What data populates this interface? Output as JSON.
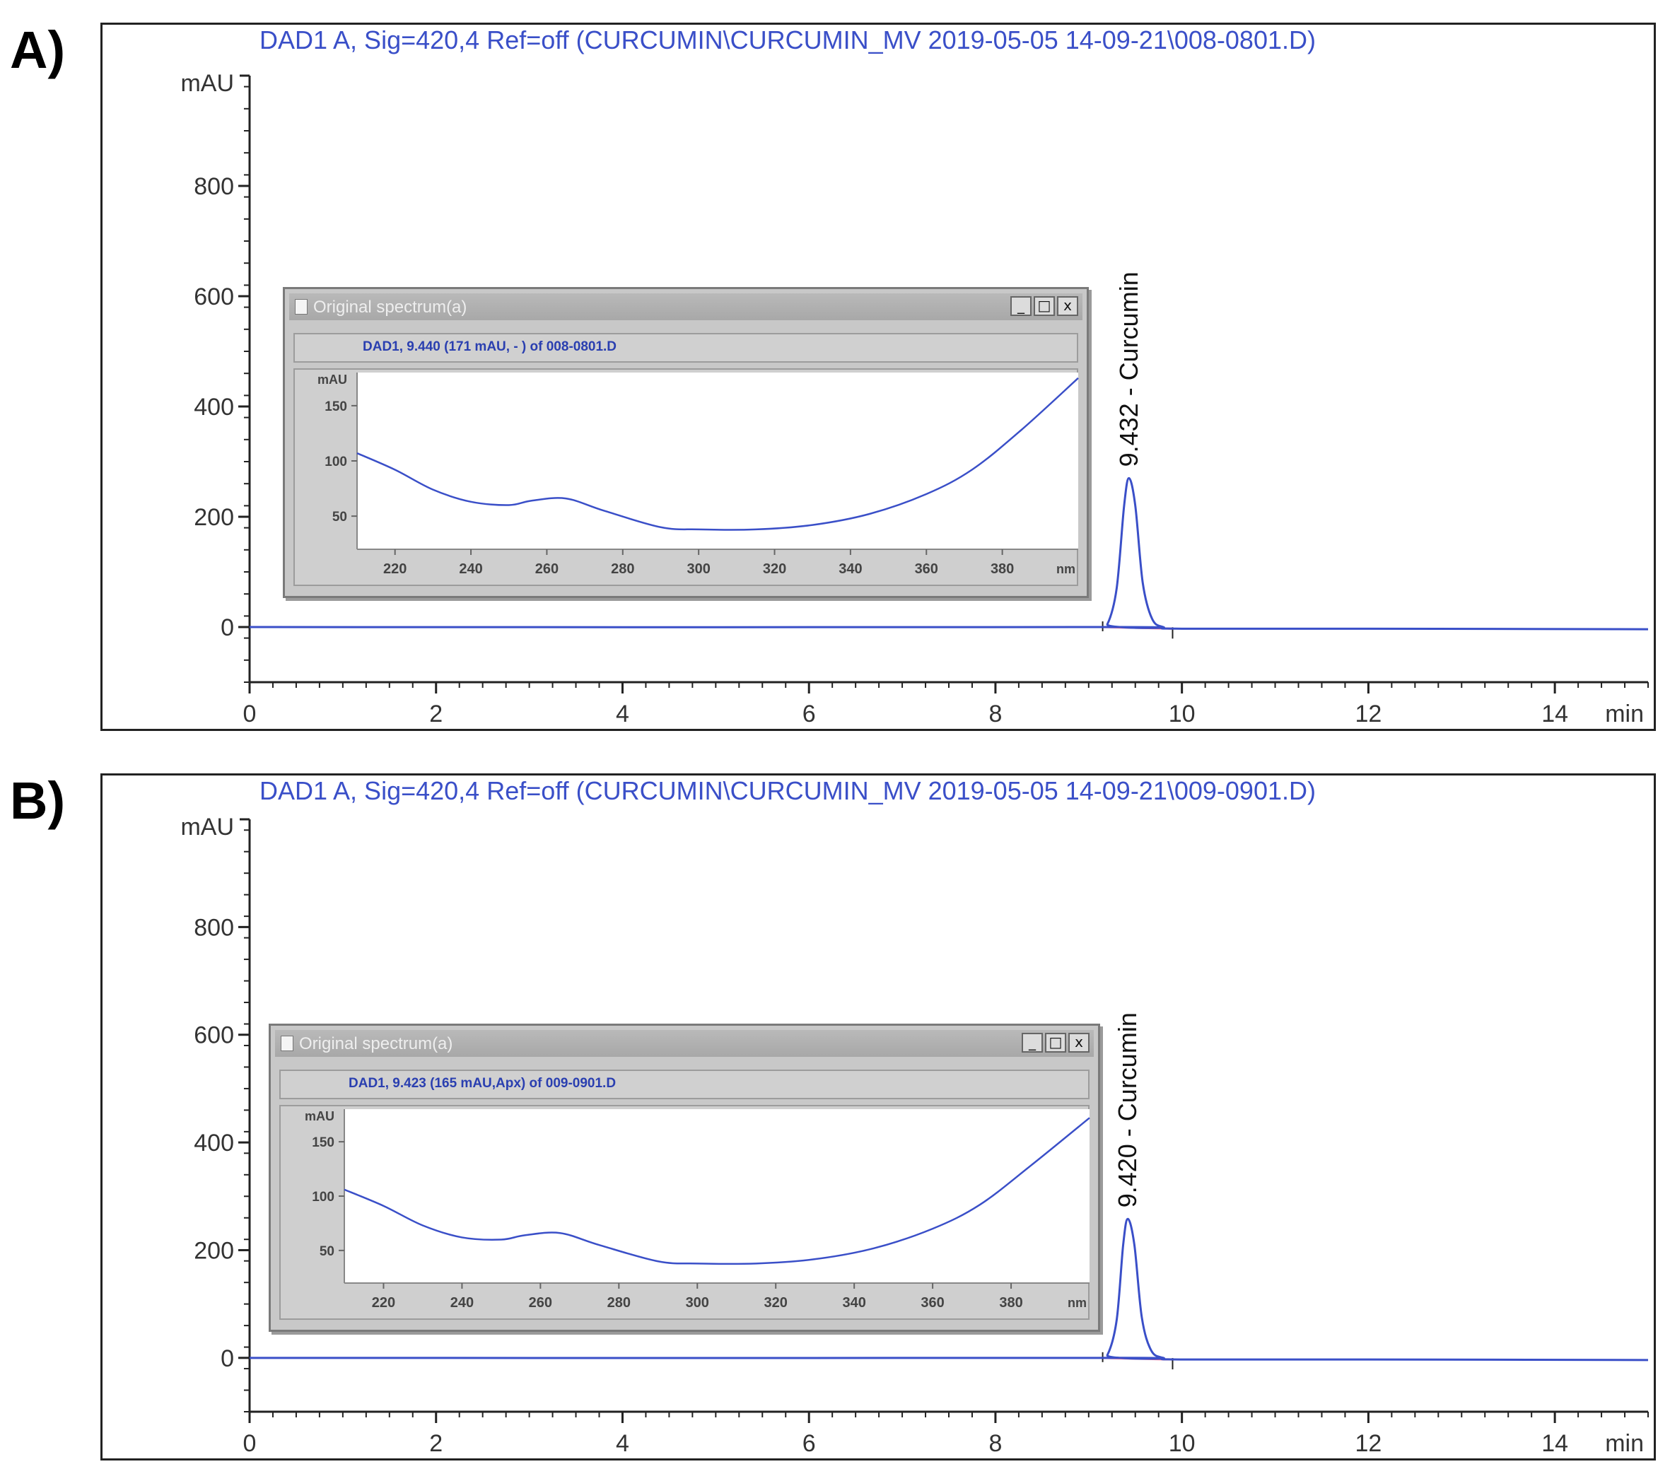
{
  "panels": [
    {
      "letter": "A)",
      "header": "DAD1 A, Sig=420,4 Ref=off (CURCUMIN\\CURCUMIN_MV 2019-05-05 14-09-21\\008-0801.D)",
      "y_unit": "mAU",
      "x_unit": "min",
      "peak_label": "9.432 -  Curcumin",
      "inset": {
        "title": "Original spectrum(a)",
        "subtitle": "DAD1, 9.440 (171 mAU, - ) of 008-0801.D",
        "y_unit": "mAU",
        "x_unit": "nm",
        "min_btn": "_",
        "max_btn": "□",
        "close_btn": "x"
      }
    },
    {
      "letter": "B)",
      "header": "DAD1 A, Sig=420,4 Ref=off (CURCUMIN\\CURCUMIN_MV 2019-05-05 14-09-21\\009-0901.D)",
      "y_unit": "mAU",
      "x_unit": "min",
      "peak_label": "9.420 -  Curcumin",
      "inset": {
        "title": "Original spectrum(a)",
        "subtitle": "DAD1, 9.423 (165 mAU,Apx) of 009-0901.D",
        "y_unit": "mAU",
        "x_unit": "nm",
        "min_btn": "_",
        "max_btn": "□",
        "close_btn": "x"
      }
    }
  ],
  "chart_data": [
    {
      "type": "line",
      "title": "DAD1 A, Sig=420,4 Ref=off (CURCUMIN\\CURCUMIN_MV 2019-05-05 14-09-21\\008-0801.D)",
      "xlabel": "min",
      "ylabel": "mAU",
      "xlim": [
        0,
        15
      ],
      "ylim": [
        -100,
        1000
      ],
      "x_ticks": [
        0,
        2,
        4,
        6,
        8,
        10,
        12,
        14
      ],
      "y_ticks": [
        0,
        200,
        400,
        600,
        800
      ],
      "grid": false,
      "series": [
        {
          "x": [
            0,
            9.1,
            9.2,
            9.3,
            9.38,
            9.432,
            9.5,
            9.58,
            9.68,
            9.8,
            10,
            12,
            15
          ],
          "y": [
            0,
            0,
            5,
            70,
            220,
            270,
            220,
            80,
            15,
            0,
            -3,
            -3,
            -4
          ]
        }
      ],
      "annotations": [
        {
          "x": 9.432,
          "y": 270,
          "text": "9.432 -  Curcumin"
        }
      ]
    },
    {
      "type": "line",
      "title": "Original spectrum(a)",
      "subtitle": "DAD1, 9.440 (171 mAU, - ) of 008-0801.D",
      "xlabel": "nm",
      "ylabel": "mAU",
      "xlim": [
        210,
        400
      ],
      "ylim": [
        20,
        180
      ],
      "x_ticks": [
        220,
        240,
        260,
        280,
        300,
        320,
        340,
        360,
        380
      ],
      "y_ticks": [
        50,
        100,
        150
      ],
      "series": [
        {
          "x": [
            210,
            220,
            230,
            240,
            250,
            256,
            265,
            275,
            290,
            300,
            315,
            330,
            345,
            360,
            372,
            385,
            400
          ],
          "y": [
            107,
            92,
            74,
            63,
            60,
            64,
            66,
            55,
            40,
            38,
            38,
            42,
            52,
            70,
            92,
            128,
            175
          ]
        }
      ]
    },
    {
      "type": "line",
      "title": "DAD1 A, Sig=420,4 Ref=off (CURCUMIN\\CURCUMIN_MV 2019-05-05 14-09-21\\009-0901.D)",
      "xlabel": "min",
      "ylabel": "mAU",
      "xlim": [
        0,
        15
      ],
      "ylim": [
        -100,
        1000
      ],
      "x_ticks": [
        0,
        2,
        4,
        6,
        8,
        10,
        12,
        14
      ],
      "y_ticks": [
        0,
        200,
        400,
        600,
        800
      ],
      "grid": false,
      "series": [
        {
          "x": [
            0,
            9.1,
            9.2,
            9.3,
            9.37,
            9.42,
            9.49,
            9.57,
            9.67,
            9.8,
            10,
            12,
            15
          ],
          "y": [
            0,
            0,
            5,
            70,
            210,
            258,
            210,
            75,
            14,
            0,
            -3,
            -3,
            -4
          ]
        }
      ],
      "annotations": [
        {
          "x": 9.42,
          "y": 258,
          "text": "9.420 -  Curcumin"
        }
      ]
    },
    {
      "type": "line",
      "title": "Original spectrum(a)",
      "subtitle": "DAD1, 9.423 (165 mAU,Apx) of 009-0901.D",
      "xlabel": "nm",
      "ylabel": "mAU",
      "xlim": [
        210,
        400
      ],
      "ylim": [
        20,
        180
      ],
      "x_ticks": [
        220,
        240,
        260,
        280,
        300,
        320,
        340,
        360,
        380
      ],
      "y_ticks": [
        50,
        100,
        150
      ],
      "series": [
        {
          "x": [
            210,
            220,
            230,
            240,
            250,
            256,
            265,
            275,
            290,
            300,
            315,
            330,
            345,
            360,
            372,
            385,
            400
          ],
          "y": [
            106,
            91,
            73,
            62,
            60,
            64,
            66,
            55,
            40,
            38,
            38,
            42,
            52,
            70,
            92,
            128,
            172
          ]
        }
      ]
    }
  ],
  "colors": {
    "trace": "#3a4fc8",
    "baseline_integration": "#ff6b8a",
    "header_text": "#3a4fc8",
    "axis": "#222222"
  }
}
